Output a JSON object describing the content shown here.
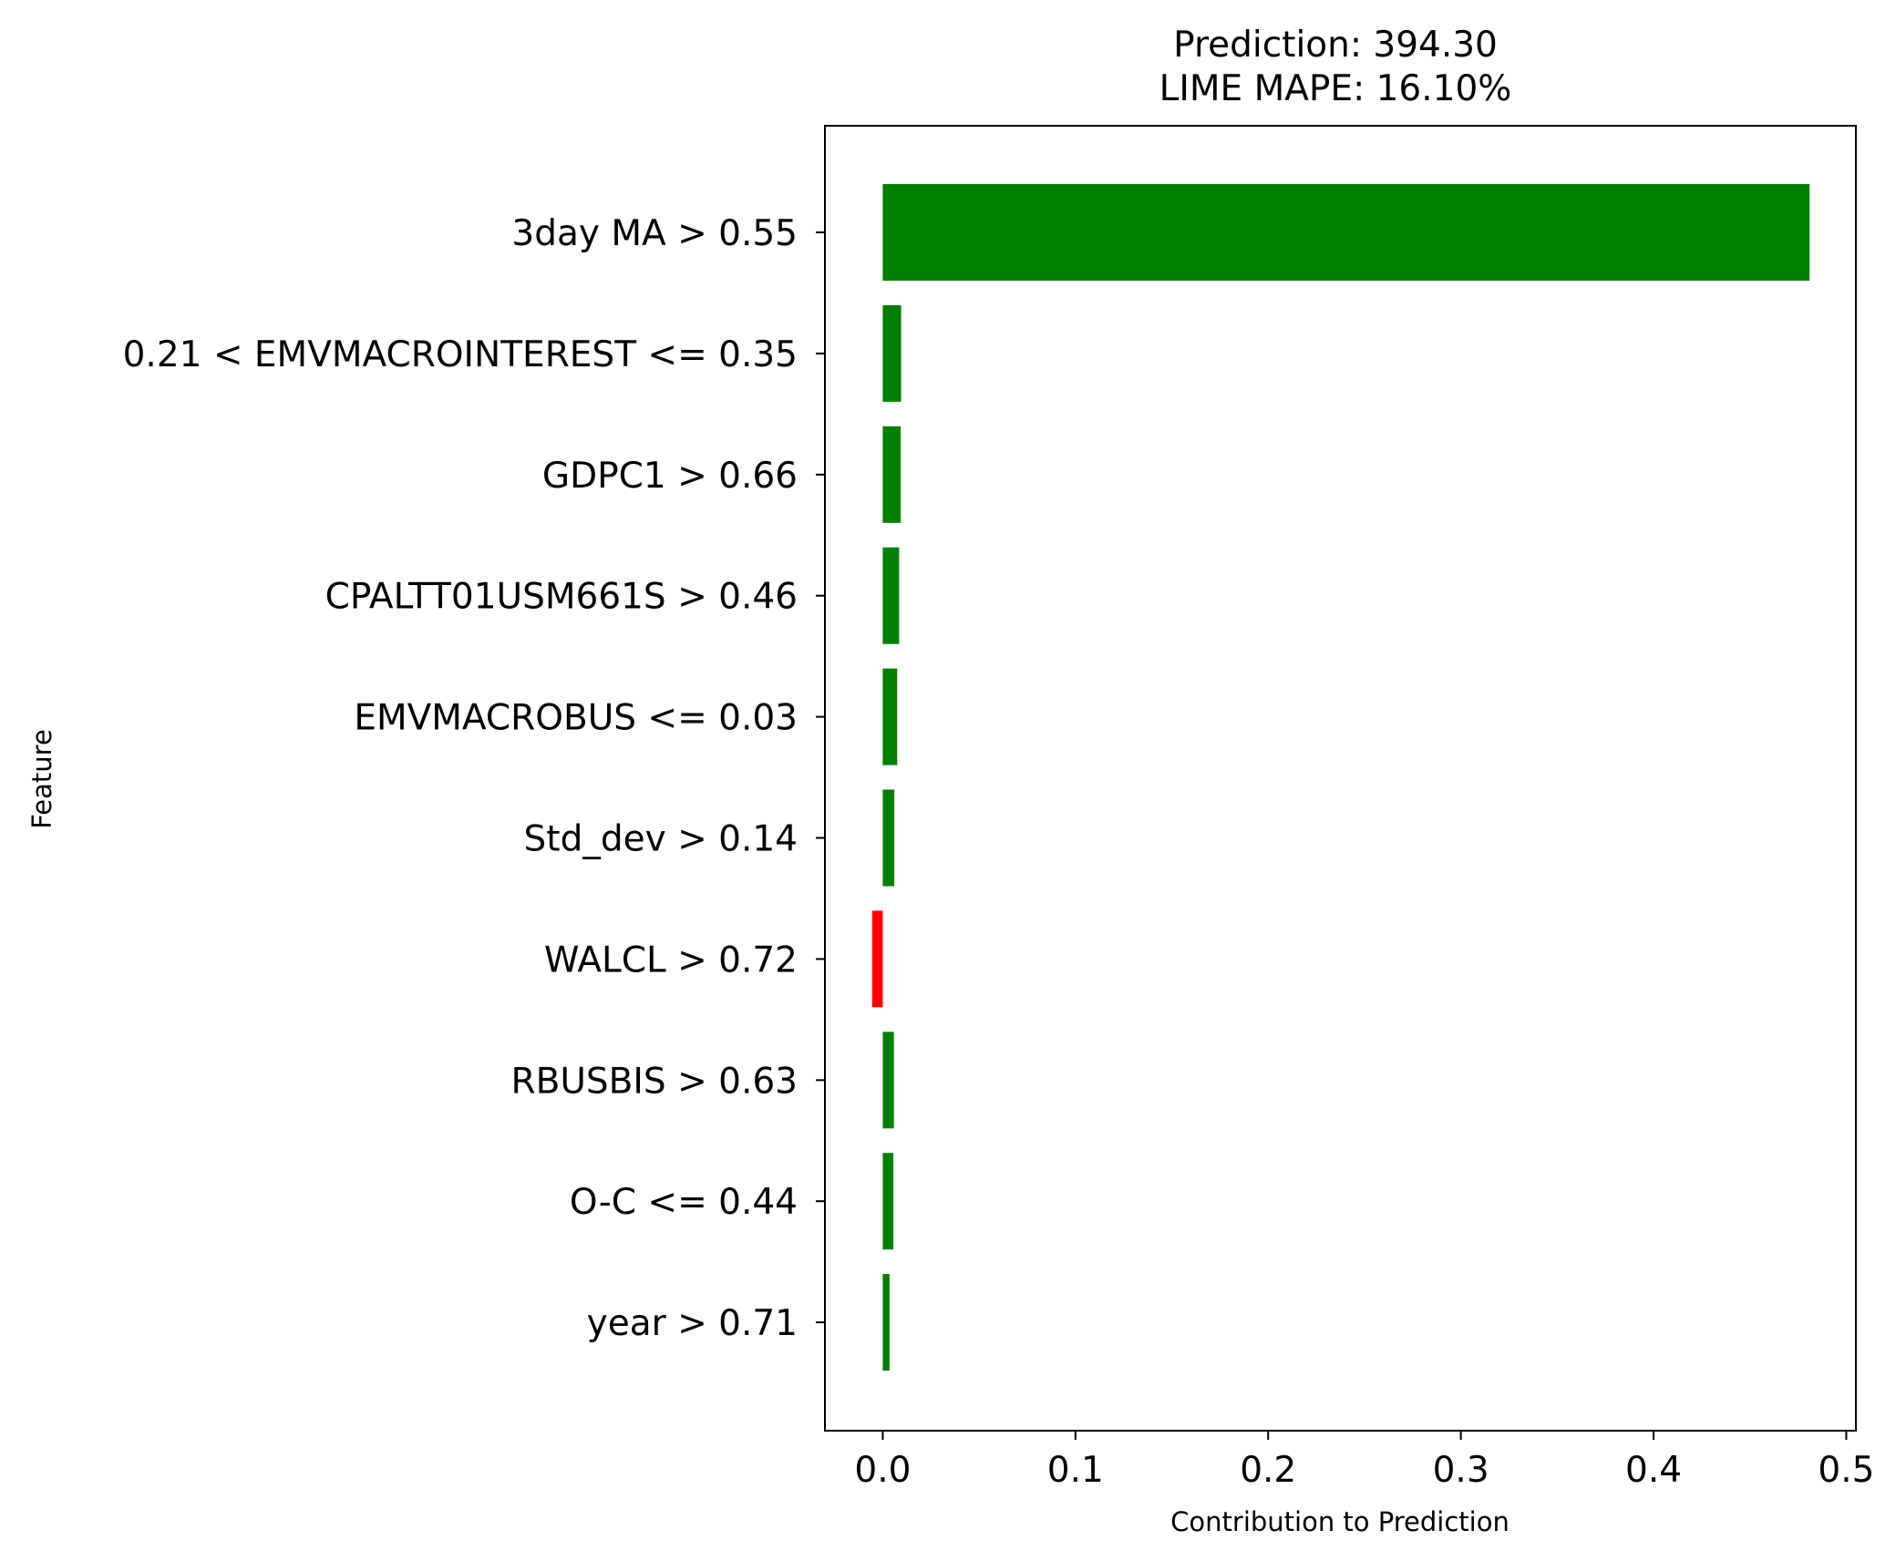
{
  "chart_data": {
    "type": "bar",
    "orientation": "horizontal",
    "title_lines": [
      "Prediction: 394.30",
      "LIME MAPE: 16.10%"
    ],
    "xlabel": "Contribution to Prediction",
    "ylabel": "Feature",
    "xlim": [
      -0.03,
      0.505
    ],
    "xticks": [
      0.0,
      0.1,
      0.2,
      0.3,
      0.4,
      0.5
    ],
    "xtick_labels": [
      "0.0",
      "0.1",
      "0.2",
      "0.3",
      "0.4",
      "0.5"
    ],
    "categories": [
      "3day MA > 0.55",
      "0.21 < EMVMACROINTEREST <= 0.35",
      "GDPC1 > 0.66",
      "CPALTT01USM661S > 0.46",
      "EMVMACROBUS <= 0.03",
      "Std_dev > 0.14",
      "WALCL > 0.72",
      "RBUSBIS > 0.63",
      "O-C <= 0.44",
      "year > 0.71"
    ],
    "values": [
      0.481,
      0.0095,
      0.0093,
      0.0085,
      0.0075,
      0.006,
      -0.0055,
      0.0058,
      0.0055,
      0.0035
    ],
    "grid": false,
    "colors": {
      "positive": "#008000",
      "negative": "#ff0000",
      "axes": "#000000"
    }
  }
}
